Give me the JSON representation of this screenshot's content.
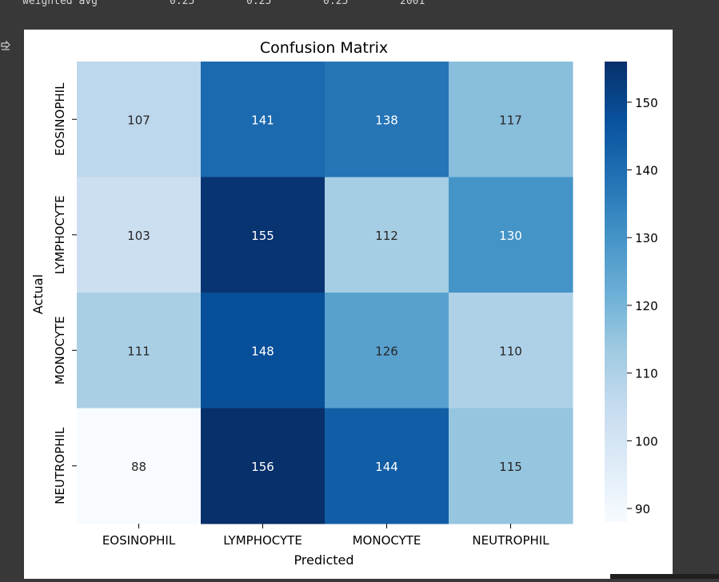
{
  "report": {
    "label": "weighted avg",
    "precision": "0.25",
    "recall": "0.25",
    "f1": "0.25",
    "support": "2001"
  },
  "output_icon": "output-toggle-icon",
  "chart_data": {
    "type": "heatmap",
    "title": "Confusion Matrix",
    "xlabel": "Predicted",
    "ylabel": "Actual",
    "x_categories": [
      "EOSINOPHIL",
      "LYMPHOCYTE",
      "MONOCYTE",
      "NEUTROPHIL"
    ],
    "y_categories": [
      "EOSINOPHIL",
      "LYMPHOCYTE",
      "MONOCYTE",
      "NEUTROPHIL"
    ],
    "values": [
      [
        107,
        141,
        138,
        117
      ],
      [
        103,
        155,
        112,
        130
      ],
      [
        111,
        148,
        126,
        110
      ],
      [
        88,
        156,
        144,
        115
      ]
    ],
    "colormap": "Blues",
    "colorbar": {
      "range": [
        88,
        156
      ],
      "ticks": [
        "90",
        "100",
        "110",
        "120",
        "130",
        "140",
        "150"
      ]
    },
    "annotations": true
  }
}
